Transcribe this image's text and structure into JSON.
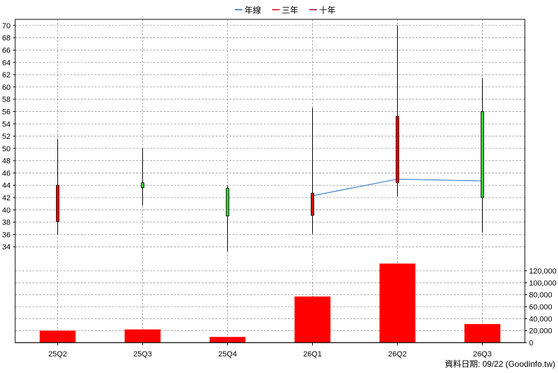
{
  "legend": [
    {
      "label": "年線",
      "color": "#1f6fbf"
    },
    {
      "label": "三年",
      "color": "#e00000"
    },
    {
      "label": "十年",
      "color": "#8b0050"
    }
  ],
  "footer": "資料日期: 09/22  (Goodinfo.tw)",
  "colors": {
    "up": "#ff0000",
    "down": "#33cc33",
    "wick": "#000000",
    "volume": "#ff0000",
    "line": "#1f6fbf",
    "grid": "#999999"
  },
  "chart_data": [
    {
      "type": "candlestick",
      "categories": [
        "25Q2",
        "25Q3",
        "25Q4",
        "26Q1",
        "26Q2",
        "26Q3"
      ],
      "ylim": [
        32,
        71
      ],
      "yticks": [
        "34",
        "36",
        "38",
        "40",
        "42",
        "44",
        "46",
        "48",
        "50",
        "52",
        "54",
        "56",
        "58",
        "60",
        "62",
        "64",
        "66",
        "68",
        "70"
      ],
      "candles": [
        {
          "label": "25Q2",
          "open": 38.1,
          "close": 44.0,
          "high": 51.5,
          "low": 36.0
        },
        {
          "label": "25Q3",
          "open": 44.4,
          "close": 43.6,
          "high": 50.0,
          "low": 40.7
        },
        {
          "label": "25Q4",
          "open": 43.5,
          "close": 39.0,
          "high": 44.0,
          "low": 33.2
        },
        {
          "label": "26Q1",
          "open": 39.1,
          "close": 42.7,
          "high": 56.6,
          "low": 36.1
        },
        {
          "label": "26Q2",
          "open": 44.4,
          "close": 55.2,
          "high": 70.0,
          "low": 42.2
        },
        {
          "label": "26Q3",
          "open": 56.0,
          "close": 42.0,
          "high": 61.4,
          "low": 36.3
        }
      ],
      "series": [
        {
          "name": "年線",
          "values": [
            null,
            null,
            null,
            42.3,
            45.0,
            44.7
          ]
        }
      ],
      "grid": true
    },
    {
      "type": "bar",
      "categories": [
        "25Q2",
        "25Q3",
        "25Q4",
        "26Q1",
        "26Q2",
        "26Q3"
      ],
      "values": [
        20000,
        22000,
        9500,
        77000,
        132000,
        31000
      ],
      "ylim": [
        0,
        135000
      ],
      "yticks": [
        "0",
        "20,000",
        "40,000",
        "60,000",
        "80,000",
        "100,000",
        "120,000"
      ],
      "ytick_values": [
        0,
        20000,
        40000,
        60000,
        80000,
        100000,
        120000
      ],
      "grid": true
    }
  ]
}
